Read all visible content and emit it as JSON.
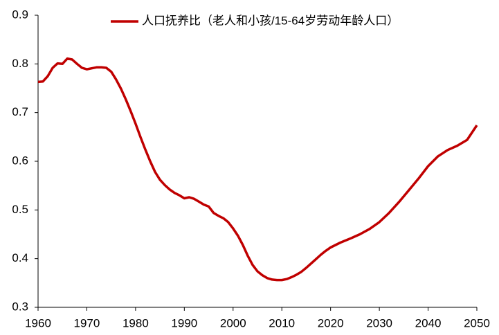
{
  "chart_data": {
    "type": "line",
    "x": [
      1960,
      1961,
      1962,
      1963,
      1964,
      1965,
      1966,
      1967,
      1968,
      1969,
      1970,
      1971,
      1972,
      1973,
      1974,
      1975,
      1976,
      1977,
      1978,
      1979,
      1980,
      1981,
      1982,
      1983,
      1984,
      1985,
      1986,
      1987,
      1988,
      1989,
      1990,
      1991,
      1992,
      1993,
      1994,
      1995,
      1996,
      1997,
      1998,
      1999,
      2000,
      2001,
      2002,
      2003,
      2004,
      2005,
      2006,
      2007,
      2008,
      2009,
      2010,
      2011,
      2012,
      2013,
      2014,
      2015,
      2016,
      2017,
      2018,
      2019,
      2020,
      2022,
      2024,
      2026,
      2028,
      2030,
      2032,
      2034,
      2036,
      2038,
      2040,
      2042,
      2044,
      2046,
      2048,
      2050
    ],
    "series": [
      {
        "name": "人口抚养比（老人和小孩/15-64岁劳动年龄人口）",
        "color": "#c00000",
        "values": [
          0.763,
          0.764,
          0.775,
          0.792,
          0.801,
          0.8,
          0.811,
          0.809,
          0.8,
          0.792,
          0.789,
          0.791,
          0.793,
          0.793,
          0.792,
          0.784,
          0.768,
          0.749,
          0.727,
          0.703,
          0.677,
          0.65,
          0.624,
          0.6,
          0.578,
          0.562,
          0.551,
          0.542,
          0.535,
          0.53,
          0.524,
          0.526,
          0.523,
          0.517,
          0.511,
          0.507,
          0.494,
          0.488,
          0.483,
          0.475,
          0.462,
          0.447,
          0.428,
          0.406,
          0.387,
          0.374,
          0.366,
          0.36,
          0.357,
          0.356,
          0.356,
          0.358,
          0.362,
          0.367,
          0.373,
          0.381,
          0.39,
          0.399,
          0.408,
          0.416,
          0.423,
          0.433,
          0.441,
          0.45,
          0.461,
          0.475,
          0.494,
          0.516,
          0.54,
          0.564,
          0.59,
          0.61,
          0.623,
          0.632,
          0.644,
          0.674
        ]
      }
    ],
    "xlim": [
      1960,
      2050
    ],
    "xticks": [
      1960,
      1970,
      1980,
      1990,
      2000,
      2010,
      2020,
      2030,
      2040,
      2050
    ],
    "ylim": [
      0.3,
      0.9
    ],
    "yticks": [
      0.3,
      0.4,
      0.5,
      0.6,
      0.7,
      0.8,
      0.9
    ],
    "legend": "top"
  }
}
